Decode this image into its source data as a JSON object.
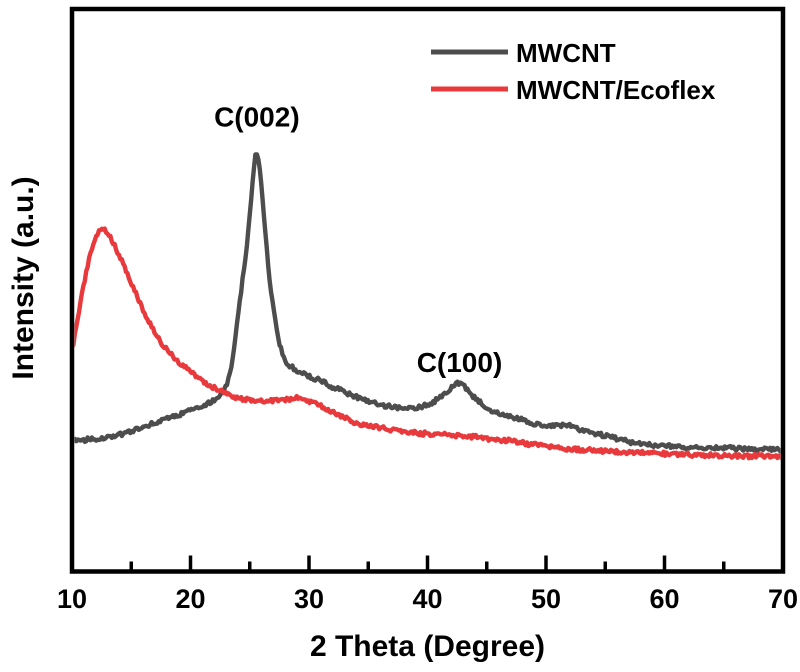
{
  "figure": {
    "background": "#ffffff",
    "frame_color": "#000000",
    "text_color": "#000000"
  },
  "axes": {
    "x_label": "2 Theta (Degree)",
    "y_label": "Intensity (a.u.)",
    "x_tick_labels": [
      "10",
      "20",
      "30",
      "40",
      "50",
      "60",
      "70"
    ]
  },
  "legend": {
    "items": [
      {
        "label": "MWCNT",
        "color": "#4d4d4d"
      },
      {
        "label": "MWCNT/Ecoflex",
        "color": "#e8393c"
      }
    ]
  },
  "annotations": [
    {
      "text": "C(002)",
      "x_deg": 25.6,
      "y_au": 446
    },
    {
      "text": "C(100)",
      "x_deg": 42.7,
      "y_au": 200
    }
  ],
  "chart_data": {
    "type": "line",
    "title": "",
    "xlabel": "2 Theta (Degree)",
    "ylabel": "Intensity (a.u.)",
    "xlim": [
      10,
      70
    ],
    "ylim": [
      0,
      564
    ],
    "x_major_ticks": [
      10,
      20,
      30,
      40,
      50,
      60,
      70
    ],
    "x_minor_ticks": [
      15,
      25,
      35,
      45,
      55,
      65
    ],
    "grid": false,
    "legend_position": "top-right",
    "noise_amplitude": 2.1,
    "peaks": [
      {
        "label": "C(002)",
        "series": "MWCNT",
        "two_theta": 25.6
      },
      {
        "label": "C(100)",
        "series": "MWCNT",
        "two_theta": 42.7
      }
    ],
    "series": [
      {
        "name": "MWCNT",
        "color": "#4d4d4d",
        "seed": 3,
        "x": [
          10,
          11,
          12,
          13,
          14,
          15,
          16,
          17,
          18,
          19,
          20,
          21,
          22,
          22.8,
          23.2,
          23.6,
          24,
          24.4,
          24.8,
          25.1,
          25.35,
          25.55,
          25.75,
          26,
          26.3,
          26.6,
          27,
          27.4,
          27.8,
          28.2,
          29,
          30,
          31,
          32,
          33,
          34,
          35,
          36,
          37,
          38,
          38.7,
          39.5,
          40.5,
          41.5,
          42.2,
          42.7,
          43.2,
          43.8,
          44.5,
          45.5,
          46.5,
          48,
          49,
          50,
          51,
          52,
          53,
          55,
          57,
          58.5,
          60,
          62,
          65,
          67,
          70
        ],
        "intensity": [
          131,
          132,
          133,
          135,
          137,
          141,
          145,
          149,
          153,
          157,
          162,
          166,
          172,
          180,
          192,
          216,
          256,
          293,
          330,
          372,
          402,
          430,
          412,
          386,
          342,
          300,
          262,
          234,
          216,
          208,
          201,
          196,
          191,
          185,
          180,
          175,
          170,
          167,
          165,
          164,
          163,
          165,
          170,
          178,
          186,
          190,
          184,
          176,
          169,
          161,
          157,
          152,
          148,
          145,
          147,
          146,
          142,
          136,
          130,
          127,
          126,
          124,
          124,
          123,
          122
        ]
      },
      {
        "name": "MWCNT/Ecoflex",
        "color": "#e8393c",
        "seed": 11,
        "x": [
          10,
          10.2,
          10.45,
          10.7,
          11,
          11.3,
          11.6,
          11.9,
          12.2,
          12.5,
          12.8,
          13.1,
          13.5,
          14,
          14.5,
          15,
          15.5,
          16,
          16.5,
          17,
          17.5,
          18,
          18.5,
          19,
          19.5,
          20,
          20.5,
          21,
          21.5,
          22,
          22.5,
          23,
          23.5,
          24,
          25,
          26,
          27,
          28,
          29,
          30,
          31,
          32,
          33,
          34,
          35,
          36,
          37,
          38,
          39,
          40,
          41,
          42,
          43,
          44,
          45,
          46,
          47,
          48,
          49,
          50,
          52,
          54,
          56,
          58,
          60,
          62,
          64,
          66,
          68,
          70
        ],
        "intensity": [
          220,
          234,
          252,
          269,
          288,
          306,
          320,
          332,
          341,
          346,
          343,
          338,
          329,
          317,
          303,
          290,
          276,
          262,
          250,
          239,
          230,
          222,
          216,
          210,
          205,
          200,
          195,
          191,
          187,
          184,
          181,
          178,
          176,
          174,
          172,
          171,
          171,
          172,
          174,
          171,
          166,
          160,
          154,
          149,
          146,
          144,
          142,
          140,
          139,
          138,
          137.5,
          137,
          136,
          135,
          133,
          132,
          131,
          129,
          127,
          125,
          123,
          121.5,
          120,
          119,
          118,
          117,
          116.5,
          116,
          115.5,
          115
        ]
      }
    ]
  }
}
